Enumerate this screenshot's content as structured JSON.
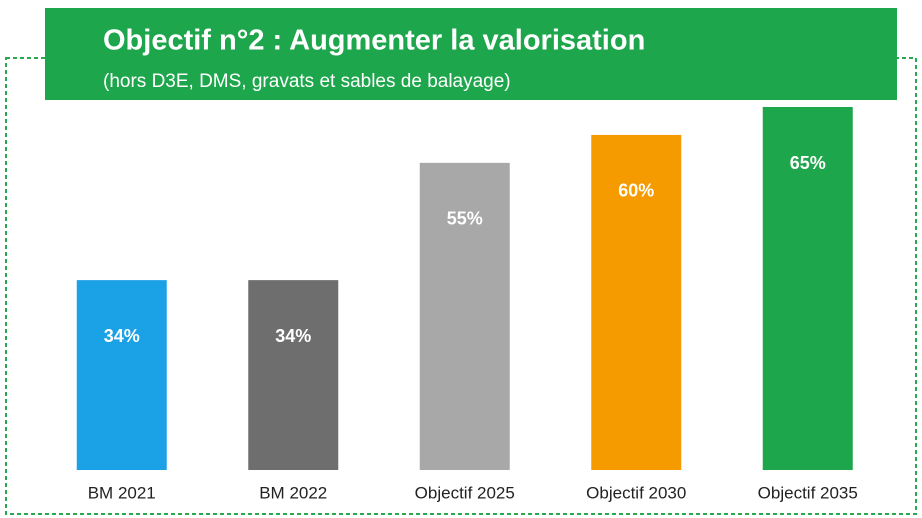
{
  "chart_data": {
    "type": "bar",
    "title": "Objectif n°2 : Augmenter la valorisation",
    "subtitle": "(hors D3E, DMS, gravats et sables de balayage)",
    "categories": [
      "BM 2021",
      "BM 2022",
      "Objectif 2025",
      "Objectif 2030",
      "Objectif 2035"
    ],
    "values": [
      34,
      34,
      55,
      60,
      65
    ],
    "value_labels": [
      "34%",
      "34%",
      "55%",
      "60%",
      "65%"
    ],
    "colors": [
      "#1ba1e6",
      "#6e6e6e",
      "#a8a8a8",
      "#f59b00",
      "#1ea64c"
    ]
  }
}
